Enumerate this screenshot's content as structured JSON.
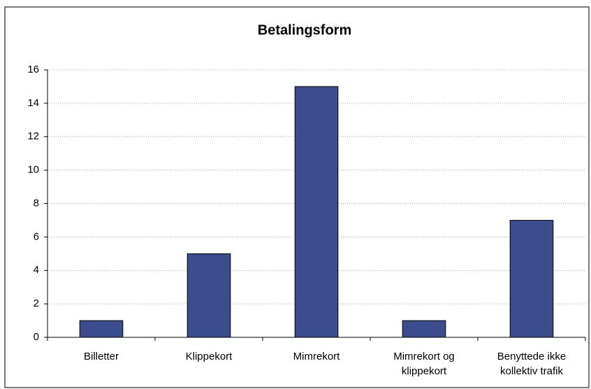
{
  "chart_data": {
    "type": "bar",
    "title": "Betalingsform",
    "categories": [
      "Billetter",
      "Klippekort",
      "Mimrekort",
      "Mimrekort og klippekort",
      "Benyttede ikke kollektiv trafik"
    ],
    "values": [
      1,
      5,
      15,
      1,
      7
    ],
    "color": "#3c4d8e",
    "ylim": [
      0,
      16
    ],
    "yticks": [
      0,
      2,
      4,
      6,
      8,
      10,
      12,
      14,
      16
    ],
    "grid": true
  }
}
